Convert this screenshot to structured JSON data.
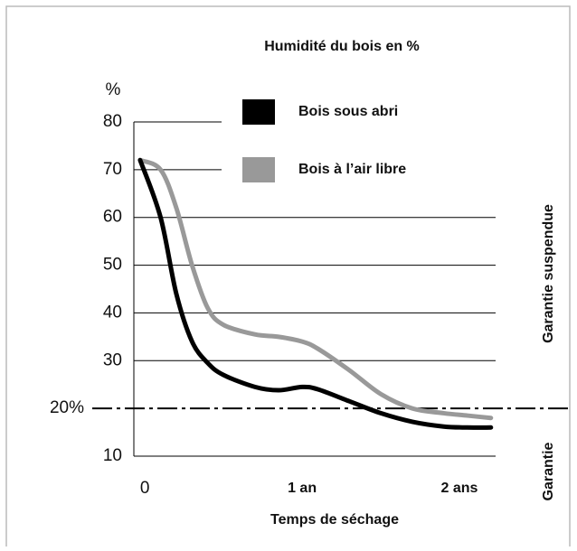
{
  "chart_data": {
    "type": "line",
    "title": "Humidité du bois en %",
    "y_label": "%",
    "x_label": "Temps de séchage",
    "annotations": [
      "Garantie suspendue",
      "Garantie"
    ],
    "xlim": [
      -0.07,
      2.23
    ],
    "xticks": [
      0,
      {
        "value": 1,
        "label": "1 an"
      },
      {
        "value": 2,
        "label": "2 ans"
      }
    ],
    "ylim": [
      10,
      80
    ],
    "yticks": [
      10,
      {
        "value": 20,
        "label": "20%"
      },
      30,
      40,
      50,
      60,
      70,
      80
    ],
    "grid": true,
    "x": [
      -0.03,
      0.1,
      0.2,
      0.3,
      0.4,
      0.5,
      0.7,
      0.85,
      1.0,
      1.1,
      1.3,
      1.5,
      1.7,
      1.9,
      2.05,
      2.2
    ],
    "series": [
      {
        "name": "Bois sous abri",
        "color": "#000000",
        "values": [
          72,
          60,
          44,
          34,
          29.5,
          27,
          24.5,
          23.8,
          24.5,
          24,
          21.5,
          19,
          17.2,
          16.2,
          16,
          16
        ]
      },
      {
        "name": "Bois à l’air libre",
        "color": "#999999",
        "values": [
          72,
          70,
          62,
          50,
          41,
          37.5,
          35.5,
          35,
          34,
          32.5,
          28,
          23,
          20,
          19,
          18.5,
          18
        ]
      }
    ]
  }
}
